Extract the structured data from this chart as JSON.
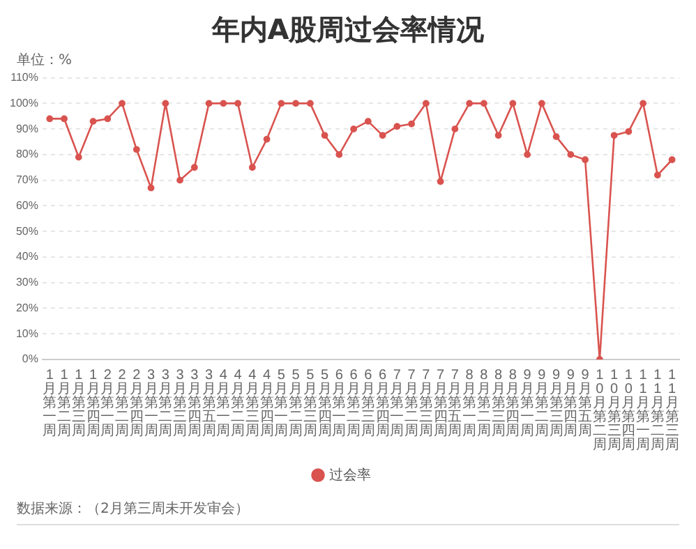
{
  "chart_data": {
    "type": "line",
    "title": "年内A股周过会率情况",
    "categories": [
      "1月第一周",
      "1月第二周",
      "1月第三周",
      "1月第四周",
      "2月第一周",
      "2月第二周",
      "2月第四周",
      "3月第一周",
      "3月第二周",
      "3月第三周",
      "3月第四周",
      "3月第五周",
      "4月第一周",
      "4月第二周",
      "4月第三周",
      "4月第四周",
      "5月第一周",
      "5月第二周",
      "5月第三周",
      "5月第四周",
      "6月第一周",
      "6月第二周",
      "6月第三周",
      "6月第四周",
      "7月第一周",
      "7月第二周",
      "7月第三周",
      "7月第四周",
      "7月第五周",
      "8月第一周",
      "8月第二周",
      "8月第三周",
      "8月第四周",
      "9月第一周",
      "9月第二周",
      "9月第三周",
      "9月第四周",
      "9月第五周",
      "10月第二周",
      "10月第三周",
      "10月第四周",
      "11月第一周",
      "11月第二周",
      "11月第三周"
    ],
    "series": [
      {
        "name": "过会率",
        "color": "#d9534f",
        "values": [
          94,
          94,
          79,
          93,
          94,
          100,
          82,
          67,
          100,
          70,
          75,
          100,
          100,
          100,
          75,
          86,
          100,
          100,
          100,
          87.5,
          80,
          90,
          93,
          87.5,
          91,
          92,
          100,
          69.5,
          90,
          100,
          100,
          87.5,
          100,
          80,
          100,
          87,
          80,
          78,
          0,
          87.5,
          89,
          100,
          72,
          78
        ]
      }
    ],
    "ylim": [
      0,
      110
    ],
    "yticks": [
      {
        "value": 0,
        "label": "0%"
      },
      {
        "value": 10,
        "label": "10%"
      },
      {
        "value": 20,
        "label": "20%"
      },
      {
        "value": 30,
        "label": "30%"
      },
      {
        "value": 40,
        "label": "40%"
      },
      {
        "value": 50,
        "label": "50%"
      },
      {
        "value": 60,
        "label": "60%"
      },
      {
        "value": 70,
        "label": "70%"
      },
      {
        "value": 80,
        "label": "80%"
      },
      {
        "value": 90,
        "label": "90%"
      },
      {
        "value": 100,
        "label": "100%"
      },
      {
        "value": 110,
        "label": "110%"
      }
    ],
    "grid": "y",
    "legend": "bottom",
    "marker": "circle",
    "line_style": "solid",
    "annotations": [
      "单位：%",
      "数据来源：（2月第三周未开发审会）"
    ]
  }
}
